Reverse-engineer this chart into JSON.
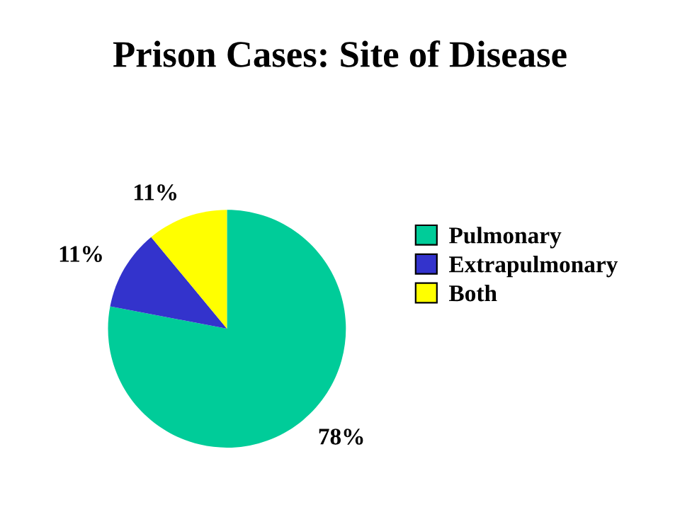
{
  "chart_data": {
    "type": "pie",
    "title": "Prison Cases: Site of Disease",
    "categories": [
      "Pulmonary",
      "Extrapulmonary",
      "Both"
    ],
    "values": [
      78,
      11,
      11
    ],
    "value_labels": [
      "78%",
      "11%",
      "11%"
    ],
    "colors": [
      "#00cc99",
      "#3333cc",
      "#ffff00"
    ],
    "legend": "right"
  }
}
